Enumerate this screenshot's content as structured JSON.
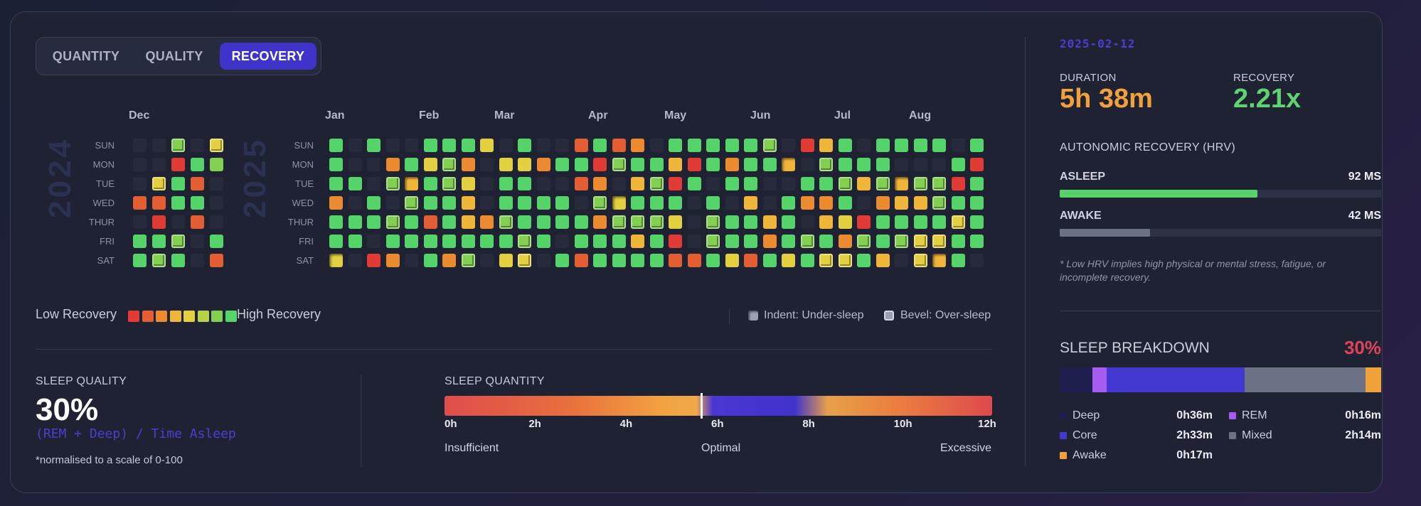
{
  "tabs": [
    "QUANTITY",
    "QUALITY",
    "RECOVERY"
  ],
  "active_tab": "RECOVERY",
  "heatmap": {
    "years": [
      "2024",
      "2025"
    ],
    "months_2024": [
      "Dec"
    ],
    "months_2025": [
      "Jan",
      "Feb",
      "Mar",
      "Apr",
      "May",
      "Jun",
      "Jul",
      "Aug"
    ],
    "day_labels": [
      "SUN",
      "MON",
      "TUE",
      "WED",
      "THUR",
      "FRI",
      "SAT"
    ]
  },
  "legend": {
    "low": "Low Recovery",
    "high": "High Recovery",
    "scale_colors": [
      "#e03b34",
      "#e35e32",
      "#ec8a30",
      "#f0b63a",
      "#e3d040",
      "#b7d24a",
      "#82cf52",
      "#55d46a"
    ],
    "indent_note": "Indent: Under-sleep",
    "bevel_note": "Bevel: Over-sleep"
  },
  "sleep_quality": {
    "title": "SLEEP QUALITY",
    "value": "30%",
    "formula": "(REM + Deep) / Time Asleep",
    "footnote": "*normalised to a scale of 0-100"
  },
  "sleep_quantity": {
    "title": "SLEEP QUANTITY",
    "ticks": [
      "0h",
      "2h",
      "4h",
      "6h",
      "8h",
      "10h",
      "12h"
    ],
    "marker_hours": 5.63,
    "captions": [
      "Insufficient",
      "Optimal",
      "Excessive"
    ]
  },
  "right_panel": {
    "date": "2025-02-12",
    "duration_label": "DURATION",
    "duration_value": "5h 38m",
    "recovery_label": "RECOVERY",
    "recovery_value": "2.21x",
    "hrv_title": "AUTONOMIC RECOVERY (HRV)",
    "asleep_label": "ASLEEP",
    "asleep_value": "92 MS",
    "asleep_fraction": 0.615,
    "awake_label": "AWAKE",
    "awake_value": "42 MS",
    "awake_fraction": 0.28,
    "hrv_note": "* Low HRV implies high physical or mental stress, fatigue, or incomplete recovery.",
    "breakdown_title": "SLEEP BREAKDOWN",
    "breakdown_score": "30%",
    "segments": [
      {
        "name": "Deep",
        "value": "0h36m",
        "color": "#1e1f4f"
      },
      {
        "name": "REM",
        "value": "0h16m",
        "color": "#a65cf0"
      },
      {
        "name": "Core",
        "value": "2h33m",
        "color": "#4338d0"
      },
      {
        "name": "Mixed",
        "value": "2h14m",
        "color": "#6b7286"
      },
      {
        "name": "Awake",
        "value": "0h17m",
        "color": "#f0a23a"
      }
    ]
  }
}
